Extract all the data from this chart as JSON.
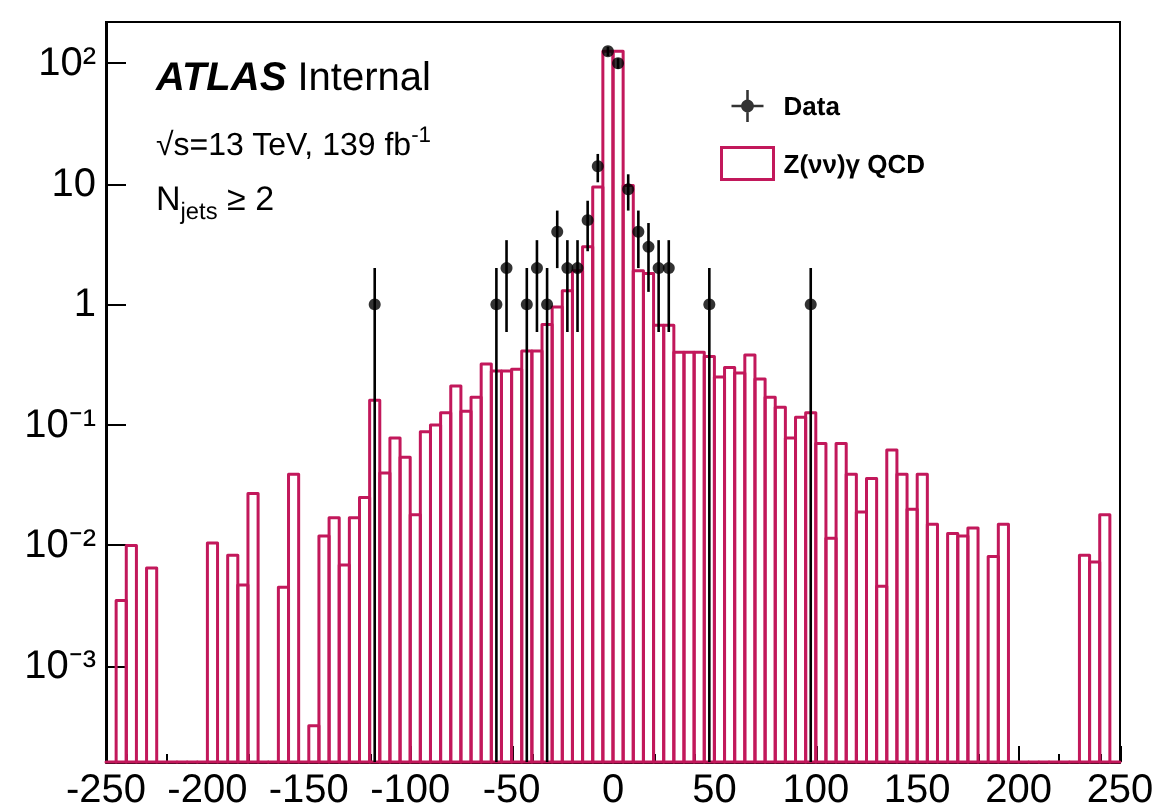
{
  "chart_data": {
    "type": "histogram",
    "annotations": [
      "ATLAS Internal",
      "√s=13 TeV, 139 fb$^{-1}$",
      "N$_{jets}$ ≥ 2"
    ],
    "bins": [
      -250,
      -245,
      -240,
      -235,
      -230,
      -225,
      -220,
      -215,
      -210,
      -205,
      -200,
      -195,
      -190,
      -185,
      -180,
      -175,
      -170,
      -165,
      -160,
      -155,
      -150,
      -145,
      -140,
      -135,
      -130,
      -125,
      -120,
      -115,
      -110,
      -105,
      -100,
      -95,
      -90,
      -85,
      -80,
      -75,
      -70,
      -65,
      -60,
      -55,
      -50,
      -45,
      -40,
      -35,
      -30,
      -25,
      -20,
      -15,
      -10,
      -5,
      0,
      5,
      10,
      15,
      20,
      25,
      30,
      35,
      40,
      45,
      50,
      55,
      60,
      65,
      70,
      75,
      80,
      85,
      90,
      95,
      100,
      105,
      110,
      115,
      120,
      125,
      130,
      135,
      140,
      145,
      150,
      155,
      160,
      165,
      170,
      175,
      180,
      185,
      190,
      195,
      200,
      205,
      210,
      215,
      220,
      225,
      230,
      235,
      240,
      245,
      250
    ],
    "series": [
      {
        "name": "Z(νν)γ QCD",
        "color": "#c2185b",
        "values": [
          null,
          0.0035,
          0.01,
          null,
          0.0065,
          null,
          null,
          null,
          null,
          null,
          0.0105,
          null,
          0.0083,
          0.0047,
          0.027,
          null,
          null,
          0.0045,
          0.039,
          null,
          0.00032,
          0.012,
          0.017,
          0.0069,
          0.017,
          0.025,
          0.16,
          0.04,
          0.078,
          0.054,
          0.018,
          0.088,
          0.1,
          0.126,
          0.21,
          0.13,
          0.17,
          0.32,
          0.28,
          0.28,
          0.29,
          0.41,
          0.41,
          0.68,
          0.95,
          1.3,
          1.9,
          3,
          9.4,
          126,
          126,
          9.7,
          1.9,
          1.8,
          0.67,
          0.67,
          0.4,
          0.4,
          0.4,
          0.37,
          0.25,
          0.3,
          0.27,
          0.38,
          0.24,
          0.17,
          0.14,
          0.078,
          0.116,
          0.126,
          0.07,
          0.0115,
          0.07,
          0.039,
          0.019,
          0.036,
          0.0046,
          0.062,
          0.039,
          0.02,
          0.039,
          0.015,
          null,
          0.0126,
          0.012,
          0.014,
          null,
          0.0081,
          0.015,
          null,
          null,
          null,
          null,
          null,
          null,
          null,
          0.0083,
          0.0073,
          0.018,
          null
        ]
      },
      {
        "type": "scatter",
        "name": "Data",
        "color": "#000000",
        "x": [
          -117.5,
          -57.5,
          -52.5,
          -42.5,
          -37.5,
          -32.5,
          -27.5,
          -22.5,
          -17.5,
          -12.5,
          -7.5,
          -2.5,
          2.5,
          7.5,
          12.5,
          17.5,
          22.5,
          27.5,
          47.5,
          97.5
        ],
        "values": [
          1,
          1,
          2,
          1,
          2,
          1,
          4,
          2,
          2,
          5,
          14,
          126,
          100,
          9,
          4,
          3,
          2,
          2,
          1,
          1
        ],
        "errors": [
          [
            0.00016,
            2
          ],
          [
            0.00016,
            2
          ],
          [
            0.59,
            3.41
          ],
          [
            0.00016,
            2
          ],
          [
            0.59,
            3.41
          ],
          [
            0.00016,
            2
          ],
          [
            2,
            6
          ],
          [
            0.59,
            3.41
          ],
          [
            0.59,
            3.41
          ],
          [
            2.76,
            7.24
          ],
          [
            10.3,
            17.7
          ],
          [
            114.8,
            137.2
          ],
          [
            90,
            110
          ],
          [
            6,
            12
          ],
          [
            2,
            6
          ],
          [
            1.27,
            4.73
          ],
          [
            0.59,
            3.41
          ],
          [
            0.59,
            3.41
          ],
          [
            0.00016,
            2
          ],
          [
            0.00016,
            2
          ]
        ]
      }
    ],
    "xlim": [
      -250,
      250
    ],
    "xticks": [
      -250,
      -200,
      -150,
      -100,
      -50,
      0,
      50,
      100,
      150,
      200,
      250
    ],
    "ylim": [
      0.00016,
      220
    ],
    "yticks": [
      {
        "value": 0.001,
        "label": "10⁻³"
      },
      {
        "value": 0.01,
        "label": "10⁻²"
      },
      {
        "value": 0.1,
        "label": "10⁻¹"
      },
      1,
      10,
      {
        "value": 100,
        "label": "10²"
      }
    ],
    "log": "y",
    "grid": false,
    "legend": "top right",
    "marker": "circle"
  }
}
